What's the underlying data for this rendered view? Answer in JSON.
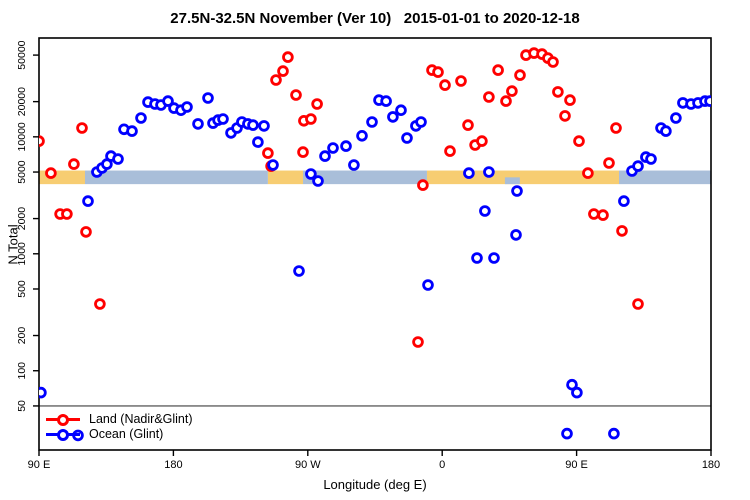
{
  "chart_data": {
    "type": "scatter",
    "title": "27.5N-32.5N November (Ver 10)   2015-01-01 to 2020-12-18",
    "xlabel": "Longitude (deg E)",
    "ylabel": "N Total",
    "y_scale": "log",
    "ylim": [
      21,
      70000
    ],
    "xlim_deg": [
      0,
      450
    ],
    "x_ticks": [
      {
        "deg": 0,
        "label": "90 E"
      },
      {
        "deg": 90,
        "label": "180"
      },
      {
        "deg": 180,
        "label": "90 W"
      },
      {
        "deg": 270,
        "label": "0"
      },
      {
        "deg": 360,
        "label": "90 E"
      },
      {
        "deg": 450,
        "label": "180"
      }
    ],
    "y_ticks": [
      50,
      100,
      200,
      500,
      1000,
      2000,
      5000,
      10000,
      20000,
      50000
    ],
    "reference_line": {
      "n": 50,
      "color": "#7a7a7a"
    },
    "surface_band": {
      "n_top": 5150,
      "n_bottom": 3940,
      "land_color": "#F7CD72",
      "ocean_color": "#A9BED9",
      "segments": [
        {
          "from": 0,
          "to": 30.8,
          "surface": "land"
        },
        {
          "from": 30.8,
          "to": 153.3,
          "surface": "ocean"
        },
        {
          "from": 153.3,
          "to": 176.8,
          "surface": "land"
        },
        {
          "from": 176.8,
          "to": 259.8,
          "surface": "ocean"
        },
        {
          "from": 259.8,
          "to": 388.4,
          "surface": "land"
        },
        {
          "from": 388.4,
          "to": 450,
          "surface": "ocean"
        }
      ],
      "notches": [
        {
          "from": 312.0,
          "to": 322.0,
          "surface": "ocean",
          "part": "lower"
        }
      ]
    },
    "legend": {
      "items": [
        {
          "label": "Land (Nadir&Glint)",
          "color": "#FF0000"
        },
        {
          "label": "Ocean (Glint)",
          "color": "#0000FF"
        }
      ]
    },
    "series": [
      {
        "name": "Land (Nadir&Glint)",
        "color": "#FF0000",
        "points": [
          [
            0,
            9200
          ],
          [
            8,
            4900
          ],
          [
            14.1,
            2190
          ],
          [
            18.7,
            2190
          ],
          [
            23.4,
            5850
          ],
          [
            28.8,
            11900
          ],
          [
            31.5,
            1540
          ],
          [
            40.8,
            372
          ],
          [
            153.3,
            7260
          ],
          [
            155.4,
            5620
          ],
          [
            158.7,
            30600
          ],
          [
            163.4,
            36500
          ],
          [
            166.7,
            48100
          ],
          [
            172.1,
            22800
          ],
          [
            176.8,
            7410
          ],
          [
            177.4,
            13700
          ],
          [
            182.1,
            14200
          ],
          [
            186.2,
            19100
          ],
          [
            253.8,
            176
          ],
          [
            257.1,
            3870
          ],
          [
            263.2,
            37200
          ],
          [
            267.2,
            35800
          ],
          [
            271.9,
            27700
          ],
          [
            275.2,
            7550
          ],
          [
            282.6,
            30000
          ],
          [
            287.3,
            12600
          ],
          [
            292.0,
            8510
          ],
          [
            296.6,
            9200
          ],
          [
            301.3,
            21900
          ],
          [
            307.4,
            37200
          ],
          [
            312.7,
            20200
          ],
          [
            316.7,
            24600
          ],
          [
            322.1,
            33700
          ],
          [
            326.1,
            50000
          ],
          [
            331.5,
            52000
          ],
          [
            336.8,
            51000
          ],
          [
            340.8,
            47100
          ],
          [
            344.2,
            43600
          ],
          [
            347.5,
            24200
          ],
          [
            352.2,
            15100
          ],
          [
            355.6,
            20600
          ],
          [
            361.6,
            9200
          ],
          [
            367.6,
            4900
          ],
          [
            371.6,
            2190
          ],
          [
            377.7,
            2140
          ],
          [
            381.7,
            5970
          ],
          [
            386.4,
            11900
          ],
          [
            390.4,
            1570
          ],
          [
            401.1,
            372
          ]
        ]
      },
      {
        "name": "Ocean (Glint)",
        "color": "#0000FF",
        "points": [
          [
            1.3,
            65
          ],
          [
            26.1,
            28
          ],
          [
            32.8,
            2820
          ],
          [
            38.8,
            5000
          ],
          [
            42.2,
            5410
          ],
          [
            45.5,
            5850
          ],
          [
            48.2,
            6850
          ],
          [
            52.9,
            6460
          ],
          [
            56.9,
            11600
          ],
          [
            62.3,
            11200
          ],
          [
            68.3,
            14500
          ],
          [
            73.0,
            19800
          ],
          [
            77.7,
            19100
          ],
          [
            81.7,
            18700
          ],
          [
            86.4,
            20200
          ],
          [
            90.4,
            17600
          ],
          [
            95.1,
            16900
          ],
          [
            99.1,
            18000
          ],
          [
            106.5,
            12900
          ],
          [
            113.2,
            21500
          ],
          [
            116.5,
            13100
          ],
          [
            119.9,
            13900
          ],
          [
            123.2,
            14200
          ],
          [
            128.6,
            10800
          ],
          [
            132.6,
            11900
          ],
          [
            135.9,
            13400
          ],
          [
            139.9,
            12900
          ],
          [
            143.3,
            12600
          ],
          [
            146.6,
            9020
          ],
          [
            150.7,
            12400
          ],
          [
            156.7,
            5740
          ],
          [
            174.1,
            713
          ],
          [
            182.1,
            4810
          ],
          [
            186.8,
            4190
          ],
          [
            191.5,
            6850
          ],
          [
            196.9,
            8020
          ],
          [
            205.6,
            8340
          ],
          [
            210.9,
            5740
          ],
          [
            216.3,
            10200
          ],
          [
            223.0,
            13400
          ],
          [
            227.7,
            20600
          ],
          [
            232.4,
            20200
          ],
          [
            237.0,
            14800
          ],
          [
            242.4,
            16900
          ],
          [
            246.4,
            9770
          ],
          [
            252.4,
            12400
          ],
          [
            255.8,
            13400
          ],
          [
            260.5,
            541
          ],
          [
            287.9,
            4900
          ],
          [
            293.3,
            920
          ],
          [
            298.6,
            2320
          ],
          [
            301.3,
            5000
          ],
          [
            304.7,
            920
          ],
          [
            319.4,
            1450
          ],
          [
            320.1,
            3440
          ],
          [
            353.6,
            29
          ],
          [
            356.9,
            76
          ],
          [
            360.2,
            65
          ],
          [
            385.0,
            29
          ],
          [
            391.7,
            2820
          ],
          [
            397.1,
            5100
          ],
          [
            401.1,
            5620
          ],
          [
            406.4,
            6710
          ],
          [
            409.8,
            6460
          ],
          [
            416.5,
            11900
          ],
          [
            419.8,
            11200
          ],
          [
            426.5,
            14500
          ],
          [
            431.2,
            19500
          ],
          [
            436.6,
            19100
          ],
          [
            441.3,
            19500
          ],
          [
            446.0,
            20200
          ],
          [
            449.3,
            20200
          ]
        ]
      }
    ]
  }
}
